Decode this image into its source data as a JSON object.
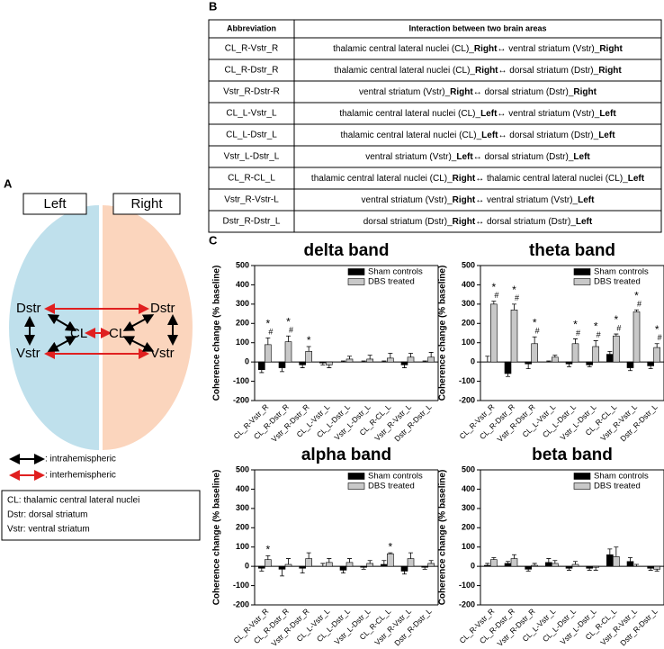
{
  "panel_a": {
    "label": "A",
    "left": "Left",
    "right": "Right",
    "nodes": {
      "l_dstr": "Dstr",
      "l_vstr": "Vstr",
      "l_cl": "CL",
      "r_cl": "CL",
      "r_dstr": "Dstr",
      "r_vstr": "Vstr"
    },
    "legend": [
      ": intrahemispheric",
      ": interhemispheric"
    ],
    "key": [
      "CL: thalamic central lateral nuclei",
      "Dstr: dorsal striatum",
      "Vstr: ventral striatum"
    ]
  },
  "panel_b": {
    "label": "B",
    "header": [
      "Abbreviation",
      "Interaction between two brain areas"
    ],
    "rows": [
      {
        "abbr": "CL_R-Vstr_R",
        "a": "thalamic central lateral nuclei (CL)_",
        "a_side": "Right",
        "b": "ventral striatum (Vstr)_",
        "b_side": "Right"
      },
      {
        "abbr": "CL_R-Dstr_R",
        "a": "thalamic central lateral nuclei (CL)_",
        "a_side": "Right",
        "b": "dorsal striatum (Dstr)_",
        "b_side": "Right"
      },
      {
        "abbr": "Vstr_R-Dstr-R",
        "a": "ventral striatum (Vstr)_",
        "a_side": "Right",
        "b": "dorsal striatum (Dstr)_",
        "b_side": "Right"
      },
      {
        "abbr": "CL_L-Vstr_L",
        "a": "thalamic central lateral nuclei (CL)_",
        "a_side": "Left",
        "b": "ventral striatum (Vstr)_",
        "b_side": "Left"
      },
      {
        "abbr": "CL_L-Dstr_L",
        "a": "thalamic central lateral nuclei (CL)_",
        "a_side": "Left",
        "b": "dorsal striatum (Dstr)_",
        "b_side": "Left"
      },
      {
        "abbr": "Vstr_L-Dstr_L",
        "a": "ventral striatum (Vstr)_",
        "a_side": "Left",
        "b": "dorsal striatum (Dstr)_",
        "b_side": "Left"
      },
      {
        "abbr": "CL_R-CL_L",
        "a": "thalamic central lateral nuclei (CL)_",
        "a_side": "Right",
        "b": "thalamic central lateral nuclei (CL)_",
        "b_side": "Left"
      },
      {
        "abbr": "Vstr_R-Vstr-L",
        "a": "ventral striatum (Vstr)_",
        "a_side": "Right",
        "b": "ventral striatum (Vstr)_",
        "b_side": "Left"
      },
      {
        "abbr": "Dstr_R-Dstr_L",
        "a": "dorsal striatum (Dstr)_",
        "a_side": "Right",
        "b": "dorsal striatum (Dstr)_",
        "b_side": "Left"
      }
    ]
  },
  "panel_c": {
    "label": "C"
  },
  "chart_data": [
    {
      "type": "bar",
      "title": "delta band",
      "ylabel": "Coherence change (% baseline)",
      "categories": [
        "CL_R-Vstr_R",
        "CL_R-Dstr_R",
        "Vstr_R-Dstr_R",
        "CL_L-Vstr_L",
        "CL_L-Dstr_L",
        "Vstr_L-Dstr_L",
        "CL_R-CL_L",
        "Vstr_R-Vstr_L",
        "Dstr_R-Dstr_L"
      ],
      "series": [
        {
          "name": "Sham controls",
          "color": "#000000",
          "values": [
            -40,
            -30,
            -15,
            -5,
            0,
            0,
            0,
            -15,
            0
          ],
          "errors": [
            15,
            20,
            15,
            10,
            5,
            5,
            5,
            15,
            5
          ]
        },
        {
          "name": "DBS treated",
          "color": "#c8c8c8",
          "values": [
            90,
            105,
            55,
            -15,
            15,
            15,
            20,
            25,
            25
          ],
          "errors": [
            35,
            30,
            25,
            15,
            15,
            20,
            25,
            20,
            25
          ],
          "annotations": [
            [
              "*",
              "#"
            ],
            [
              "*",
              "#"
            ],
            [
              "*"
            ],
            null,
            null,
            null,
            null,
            null,
            null
          ]
        }
      ],
      "ylim": [
        -200,
        500
      ],
      "yticks": [
        -200,
        -100,
        0,
        100,
        200,
        300,
        400,
        500
      ]
    },
    {
      "type": "bar",
      "title": "theta band",
      "ylabel": "Coherence change (% baseline)",
      "categories": [
        "CL_R-Vstr_R",
        "CL_R-Dstr_R",
        "Vstr_R-Dstr_R",
        "CL_L-Vstr_L",
        "CL_L-Dstr_L",
        "Vstr_L-Dstr_L",
        "CL_R-CL_L",
        "Vstr_R-Vstr_L",
        "Dstr_R-Dstr_L"
      ],
      "series": [
        {
          "name": "Sham controls",
          "color": "#000000",
          "values": [
            0,
            -60,
            -10,
            0,
            -10,
            -15,
            40,
            -30,
            -20
          ],
          "errors": [
            30,
            15,
            25,
            5,
            15,
            10,
            15,
            15,
            15
          ]
        },
        {
          "name": "DBS treated",
          "color": "#c8c8c8",
          "values": [
            300,
            270,
            95,
            25,
            95,
            80,
            135,
            260,
            75
          ],
          "errors": [
            15,
            30,
            35,
            10,
            25,
            30,
            10,
            10,
            20
          ],
          "annotations": [
            [
              "*",
              "#"
            ],
            [
              "*",
              "#"
            ],
            [
              "*",
              "#"
            ],
            null,
            [
              "*",
              "#"
            ],
            [
              "*",
              "#"
            ],
            [
              "*",
              "#"
            ],
            [
              "*",
              "#"
            ],
            [
              "*",
              "#"
            ]
          ]
        }
      ],
      "ylim": [
        -200,
        500
      ],
      "yticks": [
        -200,
        -100,
        0,
        100,
        200,
        300,
        400,
        500
      ]
    },
    {
      "type": "bar",
      "title": "alpha band",
      "ylabel": "Coherence change (% baseline)",
      "categories": [
        "CL_R-Vstr_R",
        "CL_R-Dstr_R",
        "Vstr_R-Dstr_R",
        "CL_L-Vstr_L",
        "CL_L-Dstr_L",
        "Vstr_L-Dstr_L",
        "CL_R-CL_L",
        "Vstr_R-Vstr_L",
        "Dstr_R-Dstr_L"
      ],
      "series": [
        {
          "name": "Sham controls",
          "color": "#000000",
          "values": [
            -10,
            -15,
            -10,
            0,
            -20,
            -5,
            10,
            -25,
            -5
          ],
          "errors": [
            15,
            35,
            25,
            15,
            15,
            10,
            20,
            15,
            10
          ]
        },
        {
          "name": "DBS treated",
          "color": "#c8c8c8",
          "values": [
            35,
            10,
            40,
            20,
            20,
            15,
            65,
            40,
            15
          ],
          "errors": [
            20,
            30,
            30,
            20,
            20,
            15,
            5,
            30,
            15
          ],
          "annotations": [
            [
              "*"
            ],
            null,
            null,
            null,
            null,
            null,
            [
              "*"
            ],
            null,
            null
          ]
        }
      ],
      "ylim": [
        -200,
        500
      ],
      "yticks": [
        -200,
        -100,
        0,
        100,
        200,
        300,
        400,
        500
      ]
    },
    {
      "type": "bar",
      "title": "beta band",
      "ylabel": "Coherence change (% baseline)",
      "categories": [
        "CL_R-Vstr_R",
        "CL_R-Dstr_R",
        "Vstr_R-Dstr_R",
        "CL_L-Vstr_L",
        "CL_L-Dstr_L",
        "Vstr_L-Dstr_L",
        "CL_R-CL_L",
        "Vstr_R-Vstr_L",
        "Dstr_R-Dstr_L"
      ],
      "series": [
        {
          "name": "Sham controls",
          "color": "#000000",
          "values": [
            5,
            15,
            -15,
            20,
            -10,
            -10,
            60,
            25,
            -10
          ],
          "errors": [
            10,
            10,
            10,
            20,
            10,
            10,
            30,
            20,
            10
          ]
        },
        {
          "name": "DBS treated",
          "color": "#c8c8c8",
          "values": [
            35,
            40,
            5,
            15,
            10,
            -5,
            50,
            0,
            -15
          ],
          "errors": [
            10,
            20,
            10,
            15,
            15,
            15,
            50,
            10,
            10
          ]
        }
      ],
      "ylim": [
        -200,
        500
      ],
      "yticks": [
        -200,
        -100,
        0,
        100,
        200,
        300,
        400,
        500
      ]
    }
  ]
}
